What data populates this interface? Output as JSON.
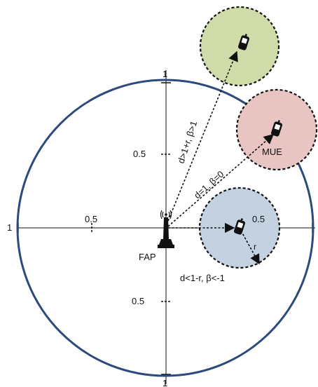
{
  "axis_labels": {
    "top": "1",
    "bottom": "1",
    "left": "1",
    "upper_half": "0.5",
    "lower_half": "0.5",
    "left_half": "0.5",
    "right_half": "0.5"
  },
  "labels": {
    "fap": "FAP",
    "mue": "MUE",
    "outside_case": "d>1+r, β>1",
    "boundary_case": "d=1, β=0",
    "inside_case": "d<1-r, β<-1",
    "radius": "r"
  },
  "colors": {
    "main_circle": "#2c4a7c",
    "outside_disk": "#cfdcaa",
    "boundary_disk": "#e8c4c2",
    "inside_disk": "#c4d1e1",
    "line": "#111111"
  },
  "icons": {
    "fap": "antenna-tower-icon",
    "ue": "mobile-phone-icon"
  }
}
